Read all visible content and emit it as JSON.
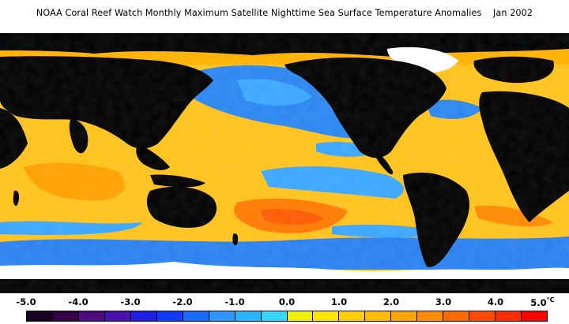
{
  "title": "NOAA Coral Reef Watch Monthly Maximum Satellite Nighttime Sea Surface Temperature Anomalies    Jan 2002",
  "legend": {
    "unit": "°C",
    "ticks": [
      "-5.0",
      "-4.0",
      "-3.0",
      "-2.0",
      "-1.0",
      "0.0",
      "1.0",
      "2.0",
      "3.0",
      "4.0",
      "5.0"
    ],
    "colors": [
      "#1a0022",
      "#350045",
      "#4f0a80",
      "#4a10b0",
      "#1f1fe6",
      "#0f3bff",
      "#1a6cff",
      "#2d95ff",
      "#28b4ff",
      "#34d8ff",
      "#f2f200",
      "#ffe600",
      "#ffd000",
      "#ffbd00",
      "#ffa500",
      "#ff8c00",
      "#ff6a00",
      "#ff4a00",
      "#ff2a00",
      "#ff0000"
    ]
  },
  "map": {
    "land_color": "#000000",
    "ice_color": "#ffffff",
    "warm_color": "#ffb000",
    "cool_color": "#2a80f0"
  }
}
